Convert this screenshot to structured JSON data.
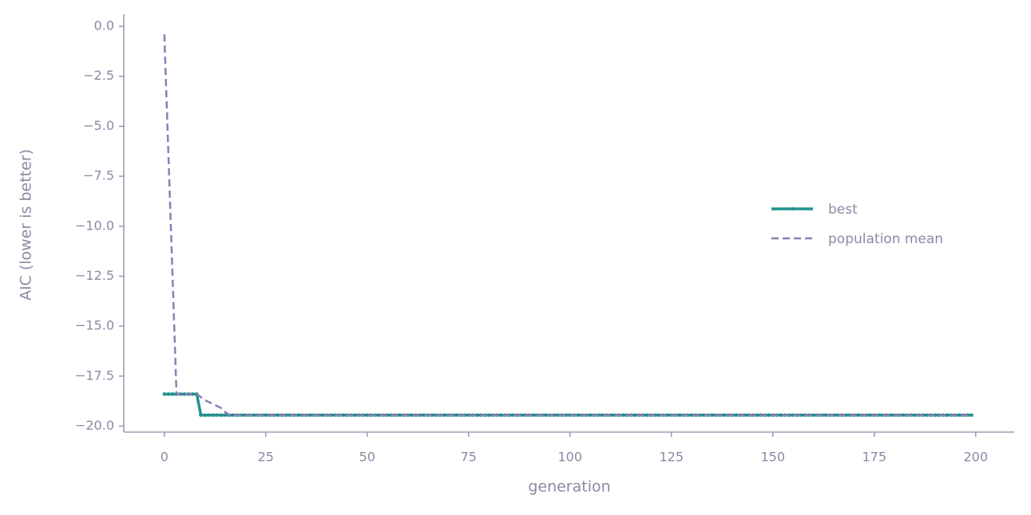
{
  "chart_data": {
    "type": "line",
    "x_label": "generation",
    "y_label": "AIC (lower is better)",
    "x": [
      0,
      1,
      2,
      3,
      4,
      5,
      6,
      7,
      8,
      9,
      10,
      11,
      12,
      13,
      14,
      15,
      16,
      17,
      18,
      19,
      20,
      21,
      22,
      23,
      24,
      25,
      26,
      27,
      28,
      29,
      30,
      31,
      32,
      33,
      34,
      35,
      36,
      37,
      38,
      39,
      40,
      41,
      42,
      43,
      44,
      45,
      46,
      47,
      48,
      49,
      50,
      51,
      52,
      53,
      54,
      55,
      56,
      57,
      58,
      59,
      60,
      61,
      62,
      63,
      64,
      65,
      66,
      67,
      68,
      69,
      70,
      71,
      72,
      73,
      74,
      75,
      76,
      77,
      78,
      79,
      80,
      81,
      82,
      83,
      84,
      85,
      86,
      87,
      88,
      89,
      90,
      91,
      92,
      93,
      94,
      95,
      96,
      97,
      98,
      99,
      100,
      101,
      102,
      103,
      104,
      105,
      106,
      107,
      108,
      109,
      110,
      111,
      112,
      113,
      114,
      115,
      116,
      117,
      118,
      119,
      120,
      121,
      122,
      123,
      124,
      125,
      126,
      127,
      128,
      129,
      130,
      131,
      132,
      133,
      134,
      135,
      136,
      137,
      138,
      139,
      140,
      141,
      142,
      143,
      144,
      145,
      146,
      147,
      148,
      149,
      150,
      151,
      152,
      153,
      154,
      155,
      156,
      157,
      158,
      159,
      160,
      161,
      162,
      163,
      164,
      165,
      166,
      167,
      168,
      169,
      170,
      171,
      172,
      173,
      174,
      175,
      176,
      177,
      178,
      179,
      180,
      181,
      182,
      183,
      184,
      185,
      186,
      187,
      188,
      189,
      190,
      191,
      192,
      193,
      194,
      195,
      196,
      197,
      198,
      199
    ],
    "series": [
      {
        "name": "best",
        "color": "#21908c",
        "style": "solid",
        "markers": true,
        "values": [
          -18.4,
          -18.4,
          -18.4,
          -18.4,
          -18.4,
          -18.4,
          -18.4,
          -18.4,
          -18.4,
          -19.45,
          -19.45,
          -19.45,
          -19.45,
          -19.45,
          -19.45,
          -19.45,
          -19.45,
          -19.45,
          -19.45,
          -19.45,
          -19.45,
          -19.45,
          -19.45,
          -19.45,
          -19.45,
          -19.45,
          -19.45,
          -19.45,
          -19.45,
          -19.45,
          -19.45,
          -19.45,
          -19.45,
          -19.45,
          -19.45,
          -19.45,
          -19.45,
          -19.45,
          -19.45,
          -19.45,
          -19.45,
          -19.45,
          -19.45,
          -19.45,
          -19.45,
          -19.45,
          -19.45,
          -19.45,
          -19.45,
          -19.45,
          -19.45,
          -19.45,
          -19.45,
          -19.45,
          -19.45,
          -19.45,
          -19.45,
          -19.45,
          -19.45,
          -19.45,
          -19.45,
          -19.45,
          -19.45,
          -19.45,
          -19.45,
          -19.45,
          -19.45,
          -19.45,
          -19.45,
          -19.45,
          -19.45,
          -19.45,
          -19.45,
          -19.45,
          -19.45,
          -19.45,
          -19.45,
          -19.45,
          -19.45,
          -19.45,
          -19.45,
          -19.45,
          -19.45,
          -19.45,
          -19.45,
          -19.45,
          -19.45,
          -19.45,
          -19.45,
          -19.45,
          -19.45,
          -19.45,
          -19.45,
          -19.45,
          -19.45,
          -19.45,
          -19.45,
          -19.45,
          -19.45,
          -19.45,
          -19.45,
          -19.45,
          -19.45,
          -19.45,
          -19.45,
          -19.45,
          -19.45,
          -19.45,
          -19.45,
          -19.45,
          -19.45,
          -19.45,
          -19.45,
          -19.45,
          -19.45,
          -19.45,
          -19.45,
          -19.45,
          -19.45,
          -19.45,
          -19.45,
          -19.45,
          -19.45,
          -19.45,
          -19.45,
          -19.45,
          -19.45,
          -19.45,
          -19.45,
          -19.45,
          -19.45,
          -19.45,
          -19.45,
          -19.45,
          -19.45,
          -19.45,
          -19.45,
          -19.45,
          -19.45,
          -19.45,
          -19.45,
          -19.45,
          -19.45,
          -19.45,
          -19.45,
          -19.45,
          -19.45,
          -19.45,
          -19.45,
          -19.45,
          -19.45,
          -19.45,
          -19.45,
          -19.45,
          -19.45,
          -19.45,
          -19.45,
          -19.45,
          -19.45,
          -19.45,
          -19.45,
          -19.45,
          -19.45,
          -19.45,
          -19.45,
          -19.45,
          -19.45,
          -19.45,
          -19.45,
          -19.45,
          -19.45,
          -19.45,
          -19.45,
          -19.45,
          -19.45,
          -19.45,
          -19.45,
          -19.45,
          -19.45,
          -19.45,
          -19.45,
          -19.45,
          -19.45,
          -19.45,
          -19.45,
          -19.45,
          -19.45,
          -19.45,
          -19.45,
          -19.45,
          -19.45,
          -19.45,
          -19.45,
          -19.45,
          -19.45,
          -19.45,
          -19.45,
          -19.45,
          -19.45,
          -19.45
        ]
      },
      {
        "name": "population mean",
        "color": "#8a7fb4",
        "style": "dashed",
        "markers": false,
        "values": [
          -0.4,
          -6.4,
          -12.4,
          -18.4,
          -18.4,
          -18.4,
          -18.4,
          -18.4,
          -18.4,
          -18.55,
          -18.7,
          -18.8,
          -18.9,
          -19.0,
          -19.1,
          -19.3,
          -19.45,
          -19.45,
          -19.45,
          -19.45,
          -19.45,
          -19.45,
          -19.45,
          -19.45,
          -19.45,
          -19.45,
          -19.45,
          -19.45,
          -19.45,
          -19.45,
          -19.45,
          -19.45,
          -19.45,
          -19.45,
          -19.45,
          -19.45,
          -19.45,
          -19.45,
          -19.45,
          -19.45,
          -19.45,
          -19.45,
          -19.45,
          -19.45,
          -19.45,
          -19.45,
          -19.45,
          -19.45,
          -19.45,
          -19.45,
          -19.45,
          -19.45,
          -19.45,
          -19.45,
          -19.45,
          -19.45,
          -19.45,
          -19.45,
          -19.45,
          -19.45,
          -19.45,
          -19.45,
          -19.45,
          -19.45,
          -19.45,
          -19.45,
          -19.45,
          -19.45,
          -19.45,
          -19.45,
          -19.45,
          -19.45,
          -19.45,
          -19.45,
          -19.45,
          -19.45,
          -19.45,
          -19.45,
          -19.45,
          -19.45,
          -19.45,
          -19.45,
          -19.45,
          -19.45,
          -19.45,
          -19.45,
          -19.45,
          -19.45,
          -19.45,
          -19.45,
          -19.45,
          -19.45,
          -19.45,
          -19.45,
          -19.45,
          -19.45,
          -19.45,
          -19.45,
          -19.45,
          -19.45,
          -19.45,
          -19.45,
          -19.45,
          -19.45,
          -19.45,
          -19.45,
          -19.45,
          -19.45,
          -19.45,
          -19.45,
          -19.45,
          -19.45,
          -19.45,
          -19.45,
          -19.45,
          -19.45,
          -19.45,
          -19.45,
          -19.45,
          -19.45,
          -19.45,
          -19.45,
          -19.45,
          -19.45,
          -19.45,
          -19.45,
          -19.45,
          -19.45,
          -19.45,
          -19.45,
          -19.45,
          -19.45,
          -19.45,
          -19.45,
          -19.45,
          -19.45,
          -19.45,
          -19.45,
          -19.45,
          -19.45,
          -19.45,
          -19.45,
          -19.45,
          -19.45,
          -19.45,
          -19.45,
          -19.45,
          -19.45,
          -19.45,
          -19.45,
          -19.45,
          -19.45,
          -19.45,
          -19.45,
          -19.45,
          -19.45,
          -19.45,
          -19.45,
          -19.45,
          -19.45,
          -19.45,
          -19.45,
          -19.45,
          -19.45,
          -19.45,
          -19.45,
          -19.45,
          -19.45,
          -19.45,
          -19.45,
          -19.45,
          -19.45,
          -19.45,
          -19.45,
          -19.45,
          -19.45,
          -19.45,
          -19.45,
          -19.45,
          -19.45,
          -19.45,
          -19.45,
          -19.45,
          -19.45,
          -19.45,
          -19.45,
          -19.45,
          -19.45,
          -19.45,
          -19.45,
          -19.45,
          -19.45,
          -19.45,
          -19.45,
          -19.45,
          -19.45,
          -19.45,
          -19.45,
          -19.45,
          -19.45
        ]
      }
    ],
    "xlim": [
      -10,
      209.5
    ],
    "ylim": [
      -20.3,
      0.6
    ],
    "xticks": [
      0,
      25,
      50,
      75,
      100,
      125,
      150,
      175,
      200
    ],
    "yticks": [
      {
        "value": 0.0,
        "label": "0.0"
      },
      {
        "value": -2.5,
        "label": "−2.5"
      },
      {
        "value": -5.0,
        "label": "−5.0"
      },
      {
        "value": -7.5,
        "label": "−7.5"
      },
      {
        "value": -10.0,
        "label": "−10.0"
      },
      {
        "value": -12.5,
        "label": "−12.5"
      },
      {
        "value": -15.0,
        "label": "−15.0"
      },
      {
        "value": -17.5,
        "label": "−17.5"
      },
      {
        "value": -20.0,
        "label": "−20.0"
      }
    ],
    "grid": false,
    "legend": "center right"
  }
}
